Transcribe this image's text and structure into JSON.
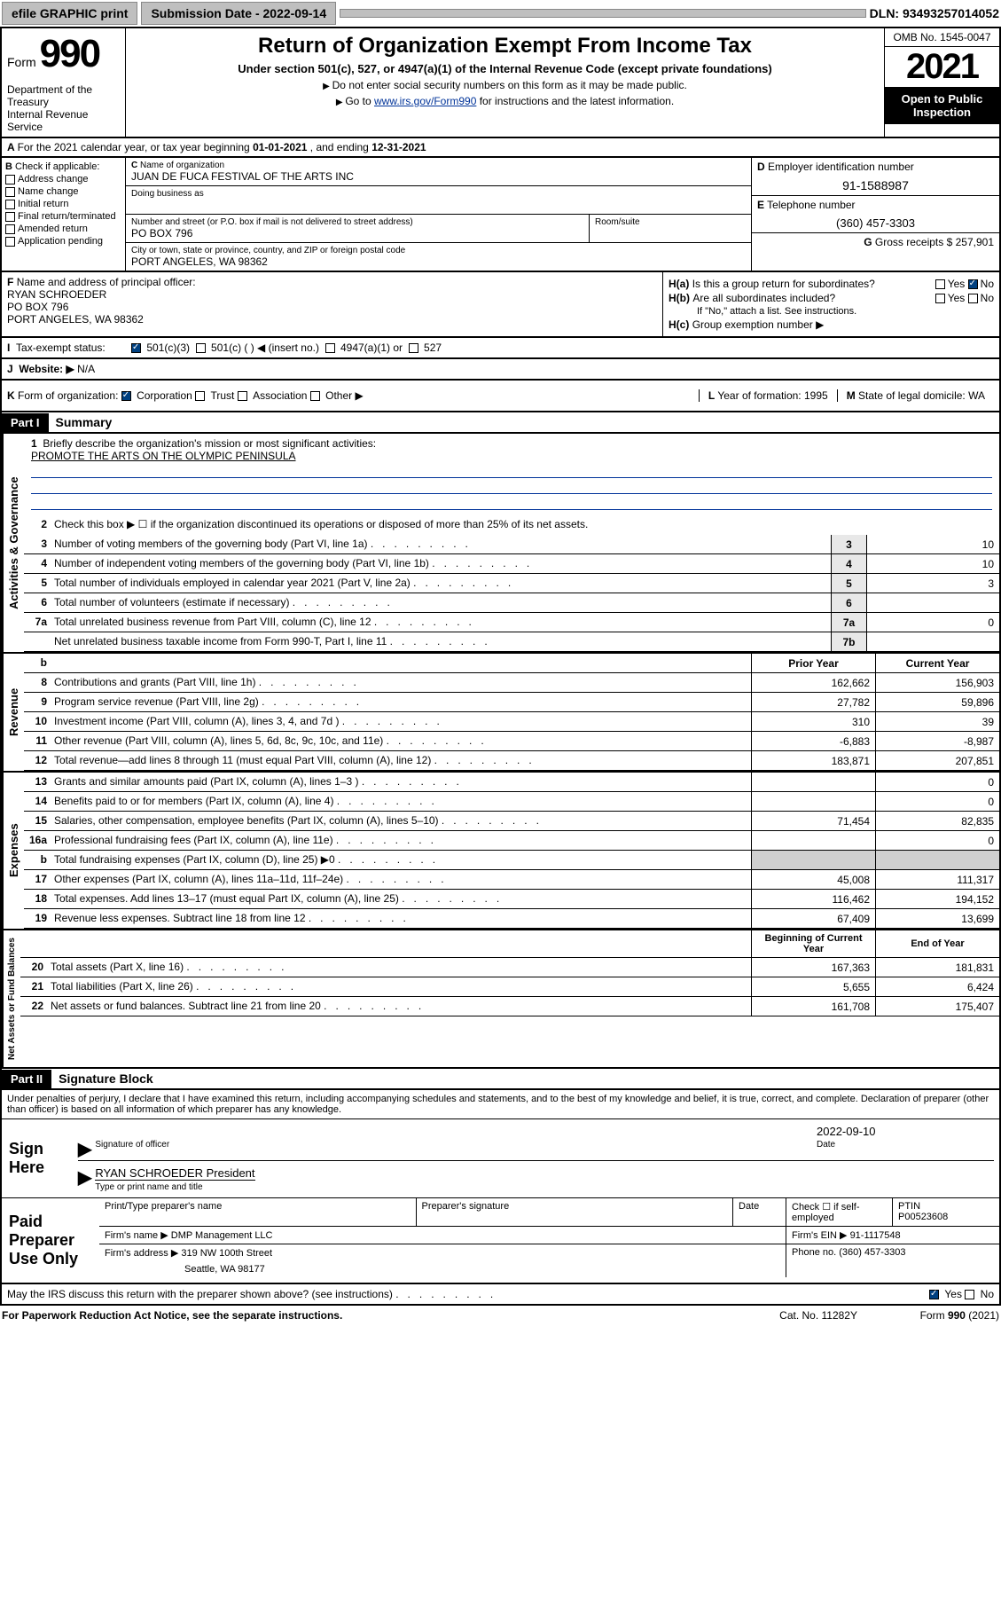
{
  "topbar": {
    "efile": "efile GRAPHIC print",
    "subdate_lbl": "Submission Date - ",
    "subdate": "2022-09-14",
    "dln": "DLN: 93493257014052"
  },
  "header": {
    "form_word": "Form",
    "form_num": "990",
    "dept": "Department of the Treasury\nInternal Revenue Service",
    "title": "Return of Organization Exempt From Income Tax",
    "sub": "Under section 501(c), 527, or 4947(a)(1) of the Internal Revenue Code (except private foundations)",
    "note1": "Do not enter social security numbers on this form as it may be made public.",
    "note2_a": "Go to ",
    "note2_link": "www.irs.gov/Form990",
    "note2_b": " for instructions and the latest information.",
    "omb": "OMB No. 1545-0047",
    "year": "2021",
    "open_pub": "Open to Public Inspection"
  },
  "A": {
    "text_a": "For the 2021 calendar year, or tax year beginning ",
    "begin": "01-01-2021",
    "mid": " , and ending ",
    "end": "12-31-2021"
  },
  "B": {
    "hdr": "Check if applicable:",
    "opts": [
      "Address change",
      "Name change",
      "Initial return",
      "Final return/terminated",
      "Amended return",
      "Application pending"
    ]
  },
  "C": {
    "name_lbl": "Name of organization",
    "name": "JUAN DE FUCA FESTIVAL OF THE ARTS INC",
    "dba_lbl": "Doing business as",
    "street_lbl": "Number and street (or P.O. box if mail is not delivered to street address)",
    "room_lbl": "Room/suite",
    "street": "PO BOX 796",
    "city_lbl": "City or town, state or province, country, and ZIP or foreign postal code",
    "city": "PORT ANGELES, WA  98362"
  },
  "D": {
    "lbl": "Employer identification number",
    "val": "91-1588987"
  },
  "E": {
    "lbl": "Telephone number",
    "val": "(360) 457-3303"
  },
  "G": {
    "lbl": "Gross receipts $",
    "val": "257,901"
  },
  "F": {
    "lbl": "Name and address of principal officer:",
    "name": "RYAN SCHROEDER",
    "addr1": "PO BOX 796",
    "addr2": "PORT ANGELES, WA  98362"
  },
  "H": {
    "a": "Is this a group return for subordinates?",
    "b": "Are all subordinates included?",
    "note": "If \"No,\" attach a list. See instructions.",
    "c": "Group exemption number ▶",
    "yes": "Yes",
    "no": "No"
  },
  "I": {
    "lbl": "Tax-exempt status:",
    "o1": "501(c)(3)",
    "o2": "501(c) (  ) ◀ (insert no.)",
    "o3": "4947(a)(1) or",
    "o4": "527"
  },
  "J": {
    "lbl": "Website: ▶",
    "val": "N/A"
  },
  "K": {
    "lbl": "Form of organization:",
    "o1": "Corporation",
    "o2": "Trust",
    "o3": "Association",
    "o4": "Other ▶"
  },
  "L": {
    "lbl": "Year of formation:",
    "val": "1995"
  },
  "M": {
    "lbl": "State of legal domicile:",
    "val": "WA"
  },
  "part1": {
    "hdr": "Part I",
    "title": "Summary"
  },
  "summary": {
    "l1_lbl": "Briefly describe the organization's mission or most significant activities:",
    "l1_val": "PROMOTE THE ARTS ON THE OLYMPIC PENINSULA",
    "l2": "Check this box ▶ ☐ if the organization discontinued its operations or disposed of more than 25% of its net assets.",
    "rows_single": [
      {
        "n": "3",
        "t": "Number of voting members of the governing body (Part VI, line 1a)",
        "b": "3",
        "v": "10"
      },
      {
        "n": "4",
        "t": "Number of independent voting members of the governing body (Part VI, line 1b)",
        "b": "4",
        "v": "10"
      },
      {
        "n": "5",
        "t": "Total number of individuals employed in calendar year 2021 (Part V, line 2a)",
        "b": "5",
        "v": "3"
      },
      {
        "n": "6",
        "t": "Total number of volunteers (estimate if necessary)",
        "b": "6",
        "v": ""
      },
      {
        "n": "7a",
        "t": "Total unrelated business revenue from Part VIII, column (C), line 12",
        "b": "7a",
        "v": "0"
      },
      {
        "n": "",
        "t": "Net unrelated business taxable income from Form 990-T, Part I, line 11",
        "b": "7b",
        "v": ""
      }
    ],
    "col_prior": "Prior Year",
    "col_curr": "Current Year",
    "revenue": [
      {
        "n": "8",
        "t": "Contributions and grants (Part VIII, line 1h)",
        "p": "162,662",
        "c": "156,903"
      },
      {
        "n": "9",
        "t": "Program service revenue (Part VIII, line 2g)",
        "p": "27,782",
        "c": "59,896"
      },
      {
        "n": "10",
        "t": "Investment income (Part VIII, column (A), lines 3, 4, and 7d )",
        "p": "310",
        "c": "39"
      },
      {
        "n": "11",
        "t": "Other revenue (Part VIII, column (A), lines 5, 6d, 8c, 9c, 10c, and 11e)",
        "p": "-6,883",
        "c": "-8,987"
      },
      {
        "n": "12",
        "t": "Total revenue—add lines 8 through 11 (must equal Part VIII, column (A), line 12)",
        "p": "183,871",
        "c": "207,851"
      }
    ],
    "expenses": [
      {
        "n": "13",
        "t": "Grants and similar amounts paid (Part IX, column (A), lines 1–3 )",
        "p": "",
        "c": "0"
      },
      {
        "n": "14",
        "t": "Benefits paid to or for members (Part IX, column (A), line 4)",
        "p": "",
        "c": "0"
      },
      {
        "n": "15",
        "t": "Salaries, other compensation, employee benefits (Part IX, column (A), lines 5–10)",
        "p": "71,454",
        "c": "82,835"
      },
      {
        "n": "16a",
        "t": "Professional fundraising fees (Part IX, column (A), line 11e)",
        "p": "",
        "c": "0"
      },
      {
        "n": "b",
        "t": "Total fundraising expenses (Part IX, column (D), line 25) ▶0",
        "p": "SHADE",
        "c": "SHADE"
      },
      {
        "n": "17",
        "t": "Other expenses (Part IX, column (A), lines 11a–11d, 11f–24e)",
        "p": "45,008",
        "c": "111,317"
      },
      {
        "n": "18",
        "t": "Total expenses. Add lines 13–17 (must equal Part IX, column (A), line 25)",
        "p": "116,462",
        "c": "194,152"
      },
      {
        "n": "19",
        "t": "Revenue less expenses. Subtract line 18 from line 12",
        "p": "67,409",
        "c": "13,699"
      }
    ],
    "col_begin": "Beginning of Current Year",
    "col_end": "End of Year",
    "netassets": [
      {
        "n": "20",
        "t": "Total assets (Part X, line 16)",
        "p": "167,363",
        "c": "181,831"
      },
      {
        "n": "21",
        "t": "Total liabilities (Part X, line 26)",
        "p": "5,655",
        "c": "6,424"
      },
      {
        "n": "22",
        "t": "Net assets or fund balances. Subtract line 21 from line 20",
        "p": "161,708",
        "c": "175,407"
      }
    ],
    "side1": "Activities & Governance",
    "side2": "Revenue",
    "side3": "Expenses",
    "side4": "Net Assets or Fund Balances"
  },
  "part2": {
    "hdr": "Part II",
    "title": "Signature Block"
  },
  "sig": {
    "decl": "Under penalties of perjury, I declare that I have examined this return, including accompanying schedules and statements, and to the best of my knowledge and belief, it is true, correct, and complete. Declaration of preparer (other than officer) is based on all information of which preparer has any knowledge.",
    "sign_here": "Sign Here",
    "date": "2022-09-10",
    "sig_officer": "Signature of officer",
    "date_lbl": "Date",
    "officer": "RYAN SCHROEDER President",
    "type_name": "Type or print name and title",
    "paid": "Paid Preparer Use Only",
    "pt_name": "Print/Type preparer's name",
    "pt_sig": "Preparer's signature",
    "pt_date": "Date",
    "check_if": "Check ☐ if self-employed",
    "ptin_lbl": "PTIN",
    "ptin": "P00523608",
    "firm_name_lbl": "Firm's name  ▶",
    "firm_name": "DMP Management LLC",
    "firm_ein_lbl": "Firm's EIN ▶",
    "firm_ein": "91-1117548",
    "firm_addr_lbl": "Firm's address ▶",
    "firm_addr": "319 NW 100th Street",
    "firm_addr2": "Seattle, WA  98177",
    "phone_lbl": "Phone no.",
    "phone": "(360) 457-3303"
  },
  "footer": {
    "discuss": "May the IRS discuss this return with the preparer shown above? (see instructions)",
    "paperwork": "For Paperwork Reduction Act Notice, see the separate instructions.",
    "cat": "Cat. No. 11282Y",
    "form": "Form 990 (2021)"
  }
}
